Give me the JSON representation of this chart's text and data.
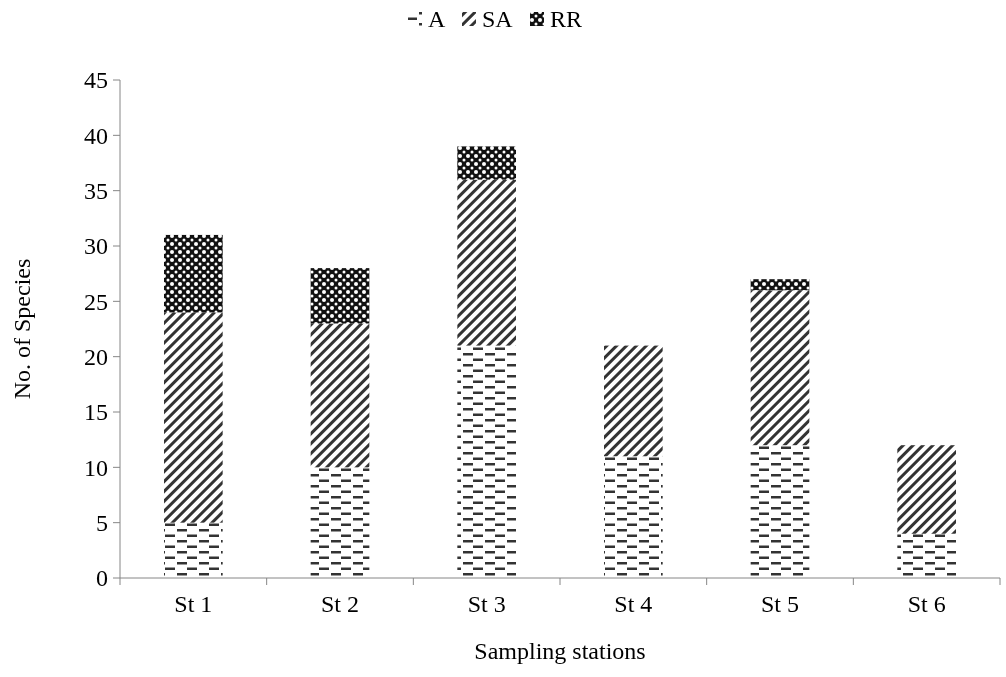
{
  "chart_data": {
    "type": "bar",
    "stacked": true,
    "xlabel": "Sampling stations",
    "ylabel": "No. of Species",
    "categories": [
      "St 1",
      "St 2",
      "St 3",
      "St 4",
      "St 5",
      "St 6"
    ],
    "series": [
      {
        "name": "A",
        "color": "#333333",
        "values": [
          5,
          10,
          21,
          11,
          12,
          4
        ]
      },
      {
        "name": "SA",
        "color": "#333333",
        "values": [
          19,
          13,
          15,
          10,
          14,
          8
        ]
      },
      {
        "name": "RR",
        "color": "#111111",
        "values": [
          7,
          5,
          3,
          0,
          1,
          0
        ]
      }
    ],
    "ylim": [
      0,
      45
    ],
    "yticks": [
      0,
      5,
      10,
      15,
      20,
      25,
      30,
      35,
      40,
      45
    ],
    "legend": "top",
    "grid": false
  }
}
